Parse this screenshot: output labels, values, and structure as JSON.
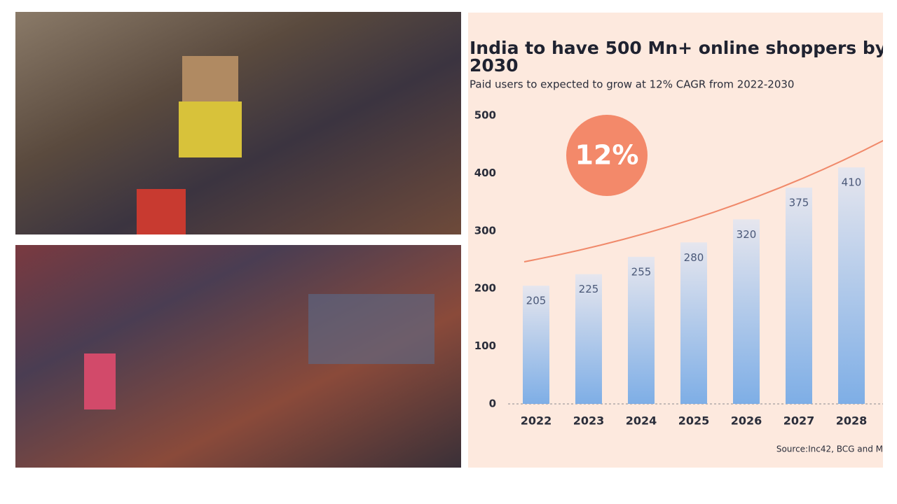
{
  "chart_data": {
    "type": "bar",
    "title": [
      "India to have 500 Mn+ online shoppers by",
      "2030"
    ],
    "subtitle": "Paid users to expected to grow at 12% CAGR from 2022-2030",
    "annotation": "12%",
    "source": "Source:Inc42, BCG and M",
    "categories": [
      "2022",
      "2023",
      "2024",
      "2025",
      "2026",
      "2027",
      "2028"
    ],
    "values": [
      205,
      225,
      255,
      280,
      320,
      375,
      410
    ],
    "ylim": [
      0,
      500
    ],
    "yticks": [
      0,
      100,
      200,
      300,
      400,
      500
    ],
    "color": "#7eaee6"
  }
}
